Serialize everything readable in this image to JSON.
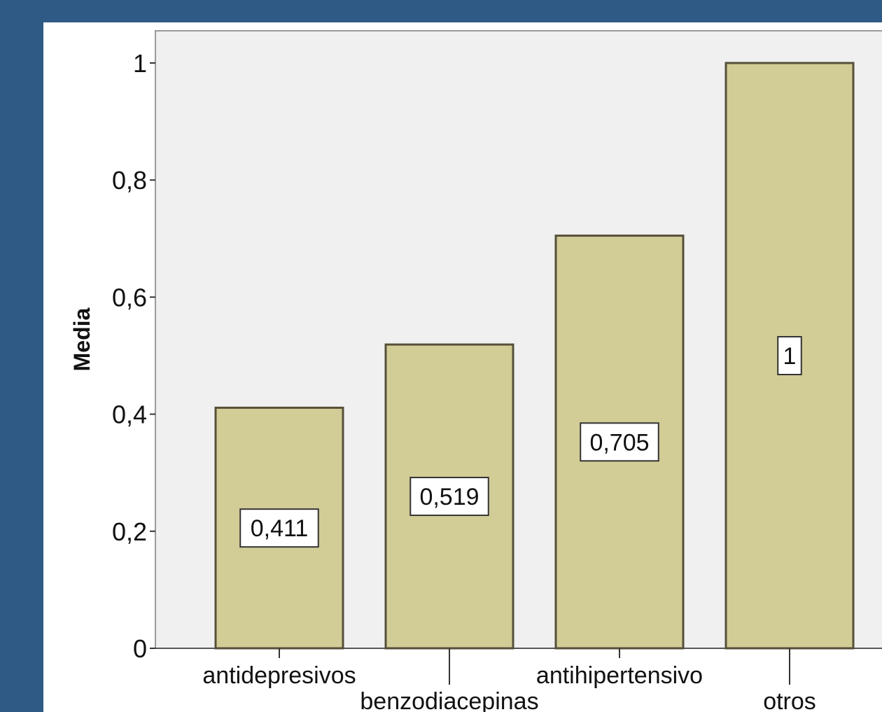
{
  "chart_data": {
    "type": "bar",
    "title": "",
    "xlabel": "",
    "ylabel": "Media",
    "categories": [
      "antidepresivos",
      "benzodiacepinas",
      "antihipertensivo",
      "otros"
    ],
    "values": [
      0.411,
      0.519,
      0.705,
      1
    ],
    "data_labels": [
      "0,411",
      "0,519",
      "0,705",
      "1"
    ],
    "y_ticks": [
      {
        "value": 0,
        "label": "0"
      },
      {
        "value": 0.2,
        "label": "0,2"
      },
      {
        "value": 0.4,
        "label": "0,4"
      },
      {
        "value": 0.6,
        "label": "0,6"
      },
      {
        "value": 0.8,
        "label": "0,8"
      },
      {
        "value": 1,
        "label": "1"
      }
    ],
    "ylim": [
      0,
      1.055
    ],
    "grid": false,
    "legend": "none",
    "colors": {
      "bar_fill": "#d2cc96",
      "bar_stroke": "#56503a",
      "plot_background": "#f0f0f0",
      "frame_background": "#2f5a86"
    }
  }
}
